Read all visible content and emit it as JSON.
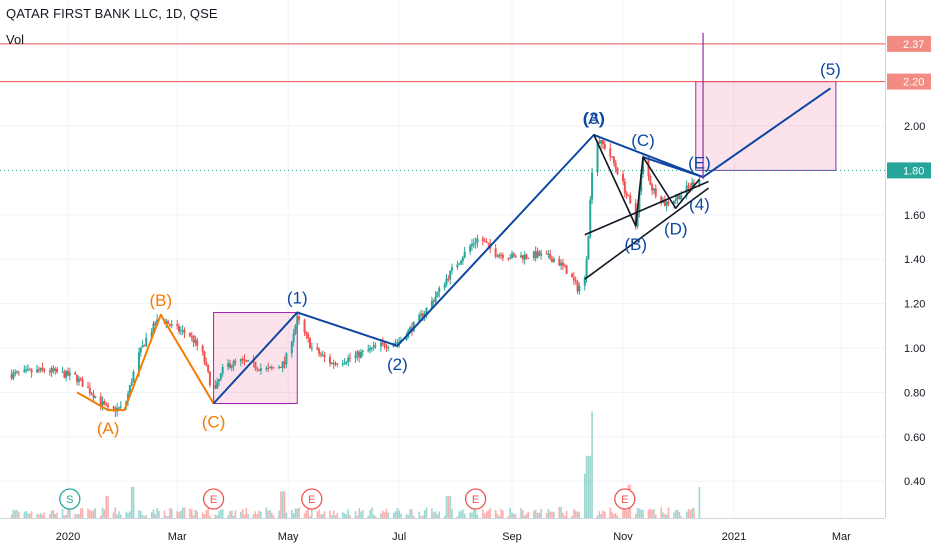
{
  "header": {
    "symbol": "QATAR FIRST BANK LLC, 1D, QSE",
    "volume_label": "Vol"
  },
  "chart_data": {
    "type": "candlestick",
    "xlabel": "",
    "ylabel": "",
    "ylim": [
      0.21,
      2.42
    ],
    "x_ticks": [
      "2020",
      "Mar",
      "May",
      "Jul",
      "Sep",
      "Nov",
      "2021",
      "Mar"
    ],
    "x_tick_dates": [
      "2020-01-01",
      "2020-03-01",
      "2020-05-01",
      "2020-07-01",
      "2020-09-01",
      "2020-11-01",
      "2021-01-01",
      "2021-03-01"
    ],
    "y_ticks": [
      0.4,
      0.6,
      0.8,
      1.0,
      1.2,
      1.4,
      1.6,
      2.0
    ],
    "y_tick_labels": [
      "0.40",
      "0.60",
      "0.80",
      "1.00",
      "1.20",
      "1.40",
      "1.60",
      "2.00"
    ],
    "price_levels": [
      {
        "value": 2.37,
        "label": "2.37",
        "color": "#ef5350",
        "style": "solid"
      },
      {
        "value": 2.2,
        "label": "2.20",
        "color": "#ef5350",
        "style": "solid"
      },
      {
        "value": 1.8,
        "label": "1.80",
        "color": "#26a69a",
        "style": "dotted"
      }
    ],
    "price_path": [
      [
        "2019-12-01",
        0.88
      ],
      [
        "2019-12-20",
        0.9
      ],
      [
        "2020-01-05",
        0.87
      ],
      [
        "2020-01-14",
        0.8
      ],
      [
        "2020-01-23",
        0.72
      ],
      [
        "2020-02-01",
        0.73
      ],
      [
        "2020-02-08",
        0.95
      ],
      [
        "2020-02-14",
        1.06
      ],
      [
        "2020-02-21",
        1.14
      ],
      [
        "2020-02-28",
        1.09
      ],
      [
        "2020-03-08",
        1.06
      ],
      [
        "2020-03-15",
        0.97
      ],
      [
        "2020-03-21",
        0.79
      ],
      [
        "2020-03-27",
        0.92
      ],
      [
        "2020-04-05",
        0.94
      ],
      [
        "2020-04-20",
        0.9
      ],
      [
        "2020-04-29",
        0.93
      ],
      [
        "2020-05-06",
        1.13
      ],
      [
        "2020-05-14",
        1.0
      ],
      [
        "2020-05-25",
        0.93
      ],
      [
        "2020-06-06",
        0.96
      ],
      [
        "2020-06-20",
        1.01
      ],
      [
        "2020-07-01",
        1.03
      ],
      [
        "2020-07-11",
        1.12
      ],
      [
        "2020-07-20",
        1.22
      ],
      [
        "2020-07-30",
        1.35
      ],
      [
        "2020-08-08",
        1.45
      ],
      [
        "2020-08-14",
        1.5
      ],
      [
        "2020-08-22",
        1.43
      ],
      [
        "2020-09-02",
        1.41
      ],
      [
        "2020-09-15",
        1.42
      ],
      [
        "2020-09-25",
        1.4
      ],
      [
        "2020-10-02",
        1.34
      ],
      [
        "2020-10-07",
        1.27
      ],
      [
        "2020-10-11",
        1.31
      ],
      [
        "2020-10-13",
        1.52
      ],
      [
        "2020-10-16",
        1.95
      ],
      [
        "2020-10-23",
        1.9
      ],
      [
        "2020-10-30",
        1.78
      ],
      [
        "2020-11-04",
        1.67
      ],
      [
        "2020-11-08",
        1.55
      ],
      [
        "2020-11-12",
        1.85
      ],
      [
        "2020-11-17",
        1.72
      ],
      [
        "2020-11-24",
        1.65
      ],
      [
        "2020-12-01",
        1.68
      ],
      [
        "2020-12-08",
        1.73
      ],
      [
        "2020-12-13",
        1.77
      ]
    ],
    "volume_spikes": [
      [
        "2020-01-23",
        0.1
      ],
      [
        "2020-02-06",
        0.14
      ],
      [
        "2020-04-28",
        0.12
      ],
      [
        "2020-07-28",
        0.1
      ],
      [
        "2020-09-27",
        0.05
      ],
      [
        "2020-10-11",
        0.2
      ],
      [
        "2020-10-13",
        0.28
      ],
      [
        "2020-10-16",
        0.48
      ],
      [
        "2020-11-01",
        0.1
      ],
      [
        "2020-11-05",
        0.15
      ],
      [
        "2020-12-13",
        0.14
      ]
    ],
    "wave_labels": [
      {
        "label": "(A)",
        "date": "2020-01-23",
        "price": 0.72,
        "color": "#f57c00",
        "pos": "below"
      },
      {
        "label": "(B)",
        "date": "2020-02-21",
        "price": 1.14,
        "color": "#f57c00",
        "pos": "above"
      },
      {
        "label": "(C)",
        "date": "2020-03-21",
        "price": 0.75,
        "color": "#f57c00",
        "pos": "below"
      },
      {
        "label": "(1)",
        "date": "2020-05-06",
        "price": 1.15,
        "color": "#0d47a1",
        "pos": "above"
      },
      {
        "label": "(2)",
        "date": "2020-06-30",
        "price": 1.01,
        "color": "#0d47a1",
        "pos": "below"
      },
      {
        "label": "(3)",
        "date": "2020-10-16",
        "price": 1.96,
        "color": "#0d47a1",
        "pos": "above"
      },
      {
        "label": "(A)",
        "date": "2020-10-16",
        "price": 1.96,
        "color": "#0d47a1",
        "pos": "above"
      },
      {
        "label": "(B)",
        "date": "2020-11-08",
        "price": 1.55,
        "color": "#0d47a1",
        "pos": "below"
      },
      {
        "label": "(C)",
        "date": "2020-11-12",
        "price": 1.86,
        "color": "#0d47a1",
        "pos": "above"
      },
      {
        "label": "(D)",
        "date": "2020-11-30",
        "price": 1.62,
        "color": "#0d47a1",
        "pos": "below"
      },
      {
        "label": "(E)",
        "date": "2020-12-13",
        "price": 1.76,
        "color": "#0d47a1",
        "pos": "above"
      },
      {
        "label": "(4)",
        "date": "2020-12-13",
        "price": 1.73,
        "color": "#0d47a1",
        "pos": "below"
      },
      {
        "label": "(5)",
        "date": "2021-02-23",
        "price": 2.18,
        "color": "#0d47a1",
        "pos": "above"
      }
    ],
    "wave_lines": [
      {
        "color": "#f57c00",
        "points": [
          [
            "2020-01-06",
            0.8
          ],
          [
            "2020-01-23",
            0.72
          ],
          [
            "2020-02-01",
            0.72
          ],
          [
            "2020-02-21",
            1.15
          ],
          [
            "2020-03-21",
            0.75
          ]
        ]
      },
      {
        "color": "#0d47a1",
        "points": [
          [
            "2020-03-21",
            0.75
          ],
          [
            "2020-05-06",
            1.16
          ],
          [
            "2020-06-30",
            1.01
          ],
          [
            "2020-10-16",
            1.96
          ],
          [
            "2020-12-15",
            1.77
          ],
          [
            "2021-02-23",
            2.17
          ]
        ]
      },
      {
        "color": "#0d47a1",
        "points": [
          [
            "2020-11-12",
            1.86
          ],
          [
            "2020-12-15",
            1.77
          ]
        ]
      },
      {
        "color": "#131722",
        "points": [
          [
            "2020-10-11",
            1.51
          ],
          [
            "2020-12-18",
            1.75
          ]
        ]
      },
      {
        "color": "#131722",
        "points": [
          [
            "2020-10-11",
            1.31
          ],
          [
            "2020-12-18",
            1.72
          ]
        ]
      },
      {
        "color": "#131722",
        "points": [
          [
            "2020-10-16",
            1.96
          ],
          [
            "2020-11-08",
            1.55
          ],
          [
            "2020-11-12",
            1.86
          ],
          [
            "2020-11-30",
            1.63
          ],
          [
            "2020-12-13",
            1.76
          ]
        ]
      }
    ],
    "zones": [
      {
        "x0": "2020-03-21",
        "x1": "2020-05-06",
        "y0": 0.75,
        "y1": 1.16
      },
      {
        "x0": "2020-12-11",
        "x1": "2021-02-26",
        "y0": 1.8,
        "y1": 2.2
      }
    ],
    "vertical_marker": {
      "date": "2020-12-15",
      "y0": 1.76,
      "y1": 2.42
    },
    "event_markers": [
      {
        "label": "S",
        "date": "2020-01-02",
        "kind": "split"
      },
      {
        "label": "E",
        "date": "2020-03-21",
        "kind": "earnings"
      },
      {
        "label": "E",
        "date": "2020-05-14",
        "kind": "earnings"
      },
      {
        "label": "E",
        "date": "2020-08-12",
        "kind": "earnings"
      },
      {
        "label": "E",
        "date": "2020-11-02",
        "kind": "earnings"
      }
    ]
  }
}
